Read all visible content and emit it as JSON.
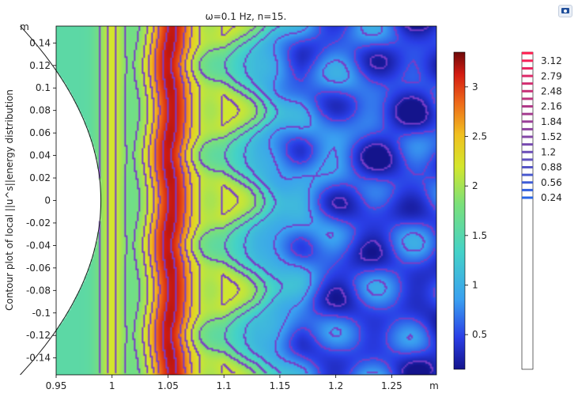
{
  "chart_data": {
    "type": "heatmap",
    "title": "ω=0.1 Hz, n=15.",
    "xlabel": "",
    "ylabel": "Contour plot of local ||u^s||energy distribution",
    "x_unit": "m",
    "y_unit": "m",
    "xlim": [
      0.95,
      1.29
    ],
    "ylim": [
      -0.155,
      0.155
    ],
    "x_ticks": [
      "0.95",
      "1",
      "1.05",
      "1.1",
      "1.15",
      "1.2",
      "1.25"
    ],
    "y_ticks": [
      "0.14",
      "0.12",
      "0.1",
      "0.08",
      "0.06",
      "0.04",
      "0.02",
      "0",
      "-0.02",
      "-0.04",
      "-0.06",
      "-0.08",
      "-0.1",
      "-0.12",
      "-0.14"
    ],
    "inner_boundary_x_at_y0": 0.99,
    "ridge_x": 1.05,
    "colorbar_surface": {
      "min": 0.15,
      "max": 3.35,
      "ticks": [
        "3",
        "2.5",
        "2",
        "1.5",
        "1",
        "0.5"
      ]
    },
    "colorbar_contour": {
      "levels": [
        "3.12",
        "2.79",
        "2.48",
        "2.16",
        "1.84",
        "1.52",
        "1.2",
        "0.88",
        "0.56",
        "0.24"
      ]
    }
  },
  "toolbar": {
    "icon": "image-snapshot-icon"
  }
}
